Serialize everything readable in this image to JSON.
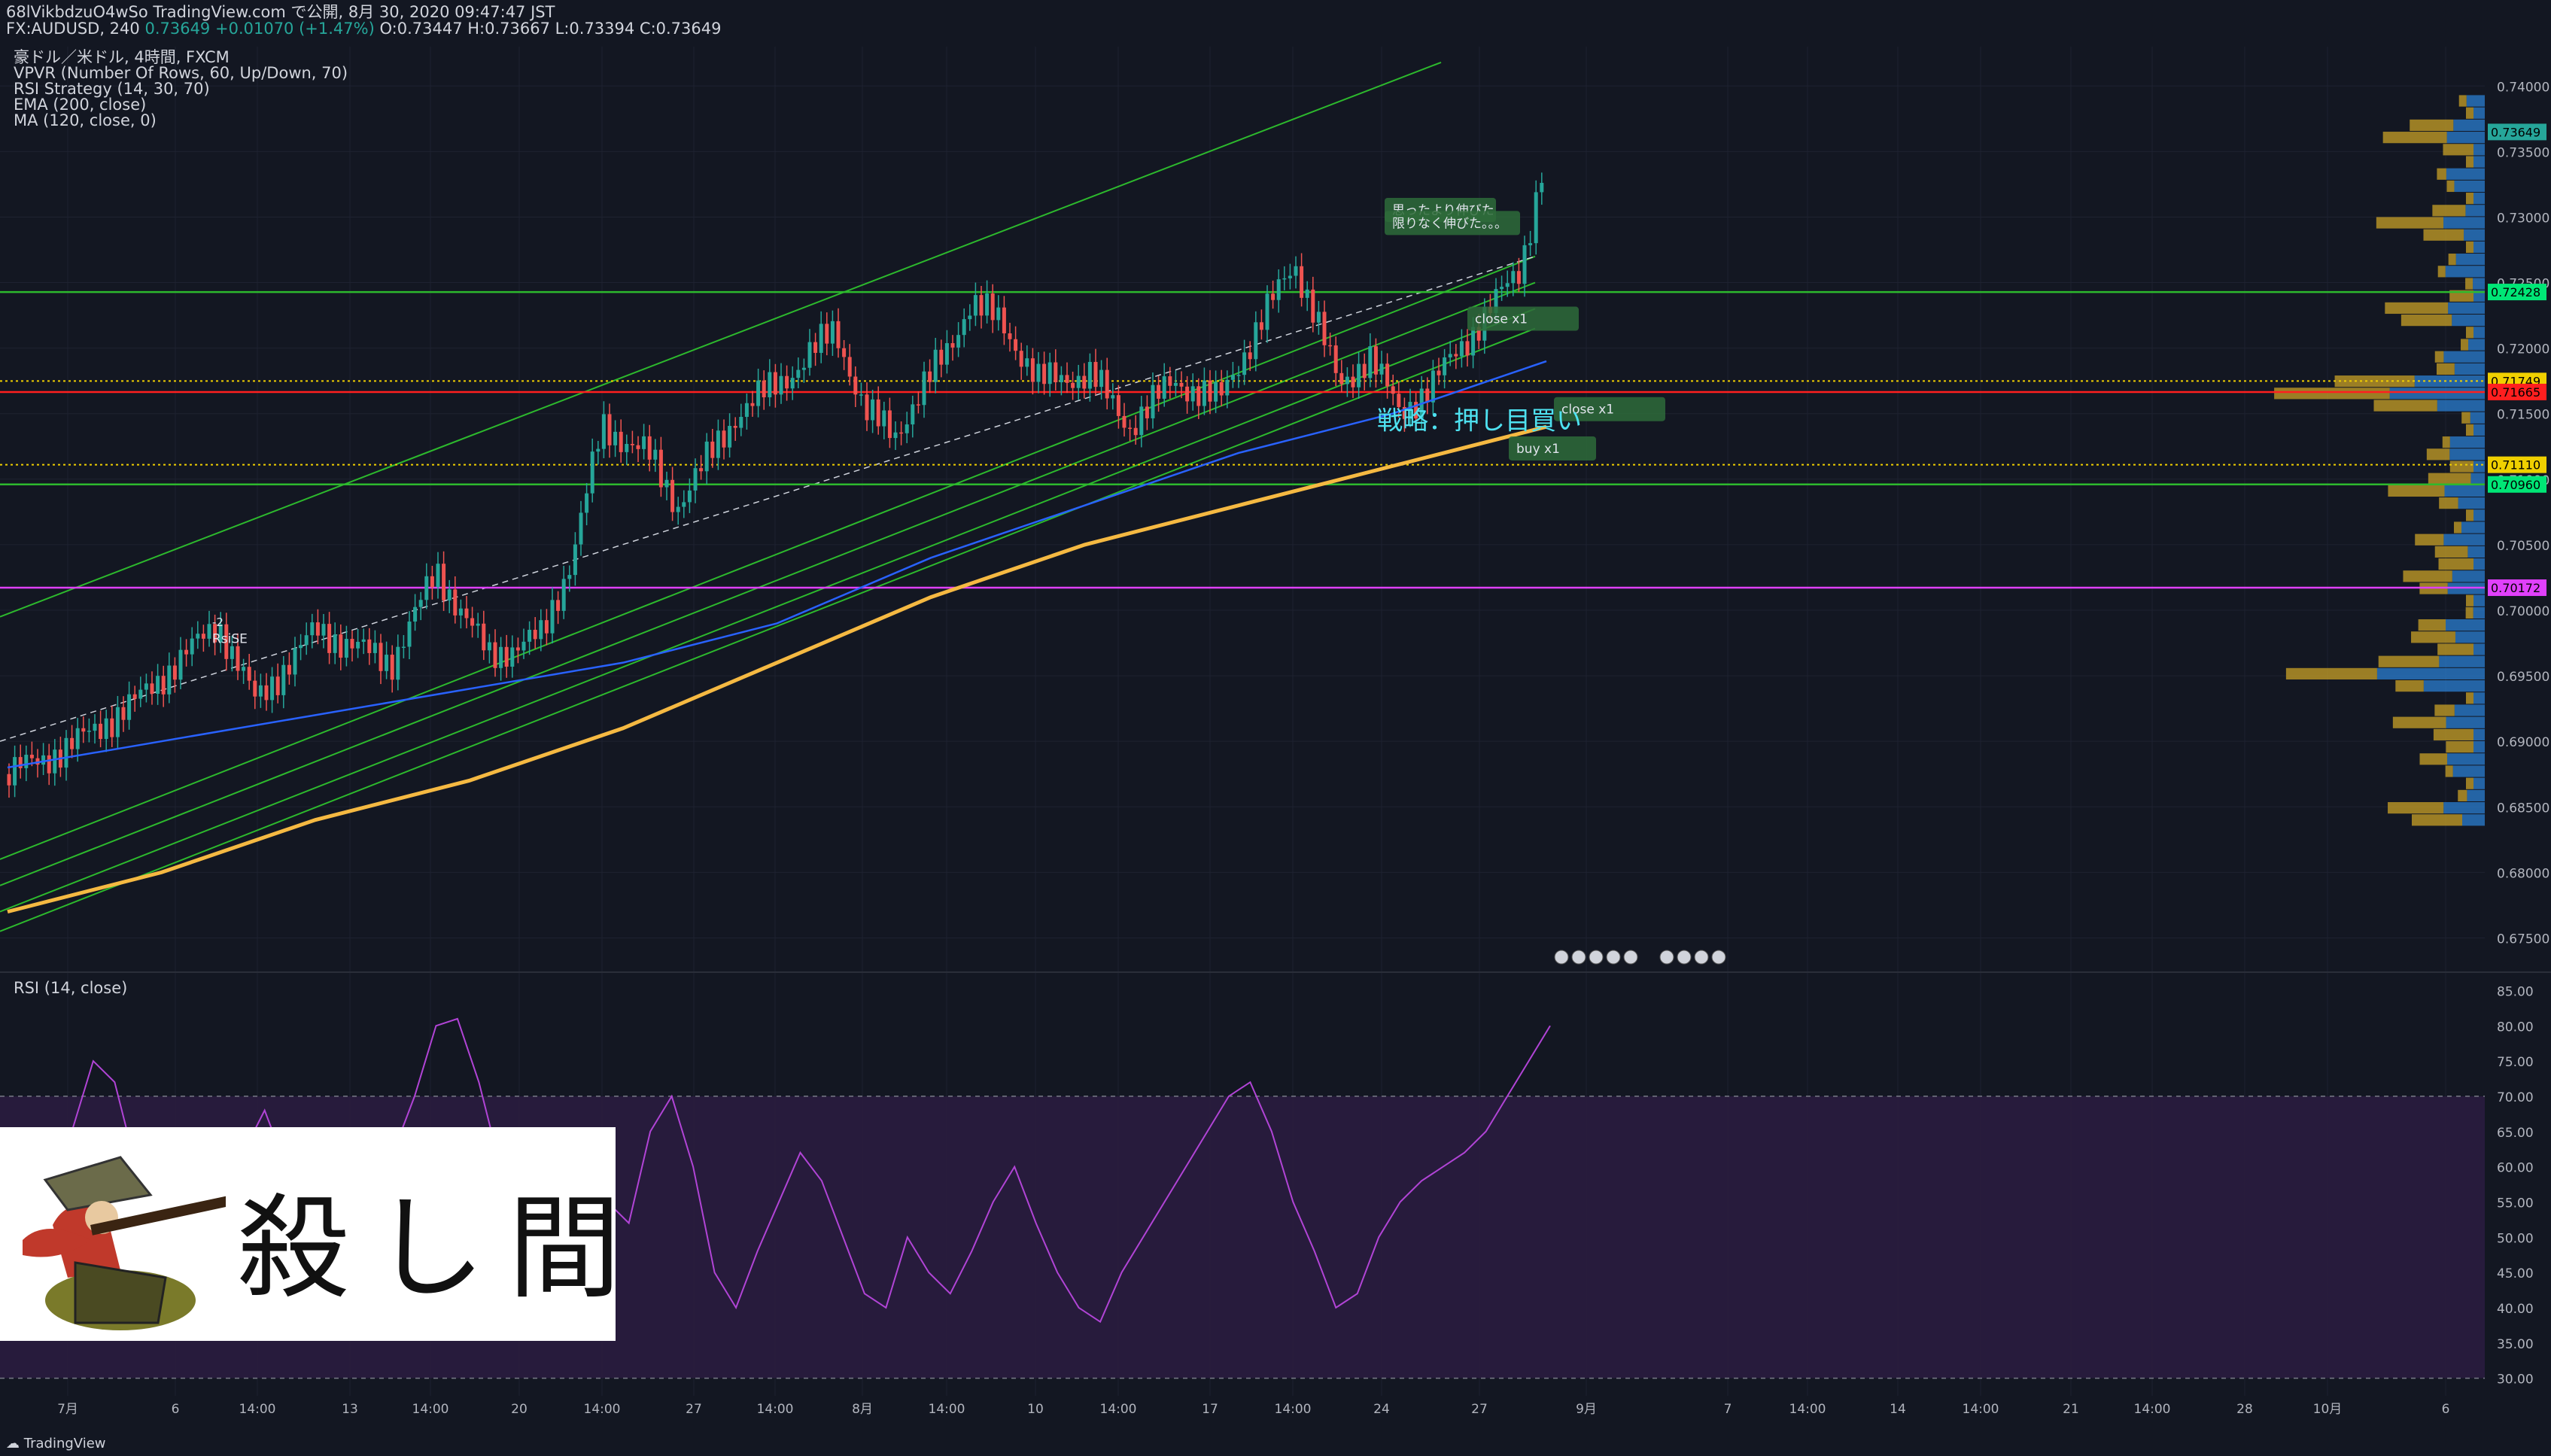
{
  "header": {
    "line1": "68lVikbdzuO4wSo TradingView.com で公開, 8月 30, 2020 09:47:47 JST",
    "symbol": "FX:AUDUSD, 240",
    "last": "0.73649",
    "change": "+0.01070 (+1.47%)",
    "ohlc": "O:0.73447 H:0.73667 L:0.73394 C:0.73649"
  },
  "indicators": [
    "豪ドル／米ドル, 4時間, FXCM",
    "VPVR (Number Of Rows, 60, Up/Down, 70)",
    "RSI Strategy (14, 30, 70)",
    "EMA (200, close)",
    "MA (120, close, 0)"
  ],
  "rsi_title": "RSI (14, close)",
  "logo_text": "殺し間",
  "footer_brand": "TradingView",
  "colors": {
    "background": "#131722",
    "up_candle": "#26a69a",
    "down_candle": "#ef5350",
    "ema": "#f5b942",
    "ma": "#2962ff",
    "channel": "#2db92d",
    "red_level": "#ff1f1f",
    "magenta_level": "#e040fb",
    "vp_up": "#2b7fd1",
    "vp_down": "#c9a227",
    "rsi_line": "#b144d6",
    "rsi_band": "#2a1c3f"
  },
  "chart_data": [
    {
      "type": "candlestick",
      "title": "豪ドル／米ドル, 4時間, FXCM",
      "ylim": [
        0.6725,
        0.743
      ],
      "y_ticks": [
        "0.74000",
        "0.73500",
        "0.73000",
        "0.72500",
        "0.72000",
        "0.71500",
        "0.71000",
        "0.70500",
        "0.70000",
        "0.69500",
        "0.69000",
        "0.68500",
        "0.68000",
        "0.67500"
      ],
      "x_tick_labels": [
        "7月",
        "6",
        "14:00",
        "13",
        "14:00",
        "20",
        "14:00",
        "27",
        "14:00",
        "8月",
        "14:00",
        "10",
        "14:00",
        "17",
        "14:00",
        "24",
        "27",
        "9月",
        "7",
        "14:00",
        "14",
        "14:00",
        "21",
        "14:00",
        "28",
        "10月",
        "6"
      ],
      "price_labels": [
        {
          "value": "0.73649",
          "color": "#26a69a"
        },
        {
          "value": "0.72428",
          "color": "#00e676"
        },
        {
          "value": "0.71749",
          "color": "#f0d000"
        },
        {
          "value": "0.71665",
          "color": "#ff1f1f"
        },
        {
          "value": "0.71110",
          "color": "#f0d000"
        },
        {
          "value": "0.70960",
          "color": "#00e676"
        },
        {
          "value": "0.70172",
          "color": "#e040fb"
        }
      ],
      "levels": [
        {
          "price": 0.72428,
          "color": "#2db92d"
        },
        {
          "price": 0.71665,
          "color": "#ff1f1f"
        },
        {
          "price": 0.71749,
          "color": "#f0d000",
          "dotted": true
        },
        {
          "price": 0.7111,
          "color": "#f0d000",
          "dotted": true
        },
        {
          "price": 0.7096,
          "color": "#2db92d"
        },
        {
          "price": 0.70172,
          "color": "#e040fb"
        }
      ],
      "annotations": [
        {
          "text": "思ったより伸びた",
          "x": 1850,
          "price": 0.7302
        },
        {
          "text": "限りなく伸びた。。。",
          "x": 1850,
          "price": 0.7292
        },
        {
          "text": "close x1",
          "x": 1960,
          "price": 0.7219
        },
        {
          "text": "close x1",
          "x": 2075,
          "price": 0.715
        },
        {
          "text": "戦略：押し目買い",
          "x": 1830,
          "price": 0.7138
        },
        {
          "text": "buy x1",
          "x": 2015,
          "price": 0.712
        },
        {
          "text": "-2",
          "x": 282,
          "price": 0.6988
        },
        {
          "text": "RsiSE",
          "x": 282,
          "price": 0.6975
        }
      ],
      "series": [
        {
          "name": "EMA (200, close)",
          "values": [
            0.677,
            0.68,
            0.684,
            0.687,
            0.691,
            0.696,
            0.701,
            0.705,
            0.708,
            0.711,
            0.714
          ]
        },
        {
          "name": "MA (120, close, 0)",
          "values": [
            0.688,
            0.69,
            0.692,
            0.694,
            0.696,
            0.699,
            0.704,
            0.708,
            0.712,
            0.715,
            0.719
          ]
        }
      ]
    },
    {
      "type": "line",
      "title": "RSI (14, close)",
      "ylim": [
        27.5,
        87.5
      ],
      "y_ticks": [
        "85.00",
        "80.00",
        "75.00",
        "70.00",
        "65.00",
        "60.00",
        "55.00",
        "50.00",
        "45.00",
        "40.00",
        "35.00",
        "30.00"
      ],
      "bands": [
        30,
        70
      ],
      "series": [
        {
          "name": "RSI",
          "values": [
            50,
            55,
            60,
            65,
            75,
            72,
            60,
            55,
            50,
            52,
            58,
            62,
            68,
            60,
            55,
            50,
            48,
            55,
            62,
            70,
            80,
            81,
            72,
            60,
            55,
            58,
            62,
            60,
            55,
            52,
            65,
            70,
            60,
            45,
            40,
            48,
            55,
            62,
            58,
            50,
            42,
            40,
            50,
            45,
            42,
            48,
            55,
            60,
            52,
            45,
            40,
            38,
            45,
            50,
            55,
            60,
            65,
            70,
            72,
            65,
            55,
            48,
            40,
            42,
            50,
            55,
            58,
            60,
            62,
            65,
            70,
            75,
            80
          ]
        }
      ]
    }
  ]
}
